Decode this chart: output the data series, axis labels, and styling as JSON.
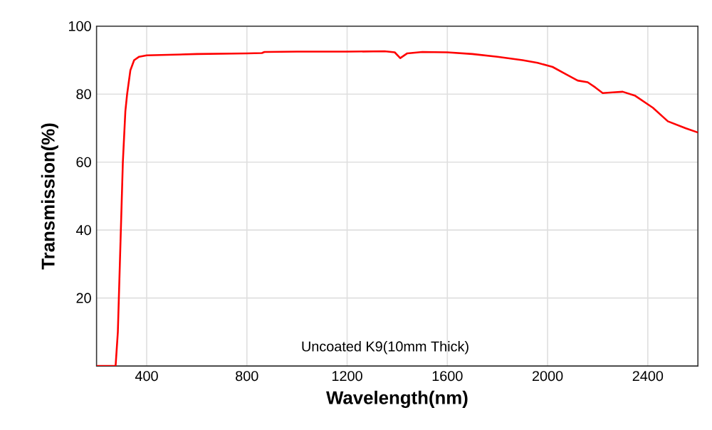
{
  "chart_data": {
    "type": "line",
    "xlabel": "Wavelength(nm)",
    "ylabel": "Transmission(%)",
    "annotations": [
      "Uncoated K9(10mm Thick)"
    ],
    "xlim": [
      200,
      2600
    ],
    "ylim": [
      0,
      100
    ],
    "xticks": [
      400,
      800,
      1200,
      1600,
      2000,
      2400
    ],
    "yticks": [
      20,
      40,
      60,
      80,
      100
    ],
    "grid": true,
    "marker": "none",
    "line_style": "solid",
    "series": [
      {
        "color": "#ff0000",
        "x": [
          200,
          276,
          285,
          295,
          305,
          315,
          322,
          335,
          350,
          370,
          400,
          500,
          600,
          800,
          860,
          870,
          1000,
          1200,
          1350,
          1390,
          1412,
          1440,
          1500,
          1600,
          1700,
          1800,
          1900,
          1960,
          2020,
          2070,
          2120,
          2160,
          2190,
          2220,
          2260,
          2300,
          2350,
          2420,
          2480,
          2550,
          2600
        ],
        "values": [
          0,
          0,
          10,
          35,
          60,
          75,
          80,
          87,
          90,
          91,
          91.4,
          91.6,
          91.8,
          92.0,
          92.1,
          92.4,
          92.5,
          92.5,
          92.6,
          92.3,
          90.6,
          92.0,
          92.4,
          92.3,
          91.8,
          91.0,
          90.0,
          89.2,
          88.0,
          86.0,
          84.0,
          83.5,
          82.0,
          80.3,
          80.5,
          80.7,
          79.5,
          76.0,
          72.0,
          70.0,
          68.7
        ]
      }
    ]
  }
}
